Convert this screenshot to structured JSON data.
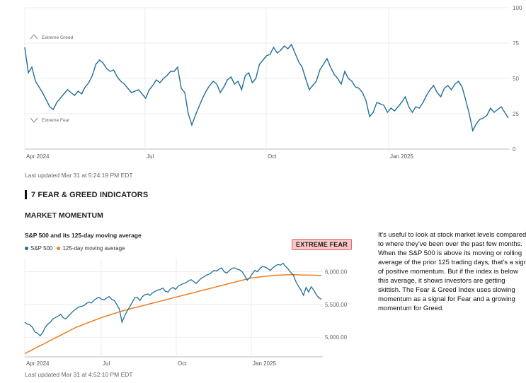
{
  "top_chart": {
    "updated": "Last updated Mar 31 at 5:24:19 PM EDT",
    "zone_greed": "Extreme Greed",
    "zone_fear": "Extreme Fear",
    "icons": [
      "chevron-up-icon",
      "chevron-down-icon"
    ],
    "line_color": "#1f6f97"
  },
  "indicators": {
    "title": "7 FEAR & GREED INDICATORS",
    "momentum_title": "MARKET MOMENTUM",
    "chart_title": "S&P 500 and its 125-day moving average",
    "badge": "EXTREME FEAR",
    "badge_color": "#f7c6c6",
    "updated": "Last updated Mar 31 at 4:52:10 PM EDT",
    "description": "It's useful to look at stock market levels compared to where they've been over the past few months. When the S&P 500 is above its moving or rolling average of the prior 125 trading days, that's a sign of positive momentum. But if the index is below this average, it shows investors are getting skittish. The Fear & Greed Index uses slowing momentum as a signal for Fear and a growing momentum for Greed."
  },
  "chart_data": [
    {
      "type": "line",
      "x_tick_labels": [
        "Apr 2024",
        "Jul",
        "Oct",
        "Jan 2025"
      ],
      "y_tick_labels": [
        "0",
        "25",
        "50",
        "75",
        "100"
      ],
      "ylim": [
        0,
        100
      ],
      "grid": true,
      "series": [
        {
          "color": "#1f6f97",
          "values": [
            72,
            54,
            58,
            48,
            44,
            40,
            35,
            30,
            28,
            33,
            36,
            39,
            42,
            40,
            38,
            41,
            39,
            44,
            47,
            52,
            60,
            63,
            61,
            57,
            55,
            56,
            51,
            48,
            46,
            43,
            40,
            41,
            42,
            39,
            36,
            42,
            45,
            49,
            47,
            50,
            52,
            55,
            55,
            58,
            43,
            40,
            25,
            17,
            24,
            30,
            36,
            41,
            45,
            48,
            46,
            40,
            44,
            49,
            51,
            46,
            48,
            42,
            52,
            54,
            47,
            50,
            60,
            63,
            66,
            67,
            72,
            68,
            70,
            73,
            71,
            74,
            68,
            62,
            58,
            50,
            42,
            45,
            48,
            56,
            60,
            64,
            58,
            53,
            50,
            46,
            55,
            50,
            48,
            44,
            43,
            40,
            34,
            23,
            26,
            33,
            32,
            31,
            26,
            29,
            27,
            30,
            33,
            37,
            30,
            26,
            30,
            29,
            33,
            38,
            42,
            45,
            40,
            37,
            43,
            45,
            42,
            46,
            48,
            44,
            35,
            25,
            13,
            18,
            21,
            22,
            24,
            29,
            26,
            28,
            30,
            26,
            22
          ]
        }
      ]
    },
    {
      "type": "line",
      "title": "S&P 500 and its 125-day moving average",
      "x_tick_labels": [
        "Apr 2024",
        "Jul",
        "Oct",
        "Jan 2025"
      ],
      "y_tick_labels": [
        "5,000.00",
        "5,500.00",
        "6,000.00"
      ],
      "ylim": [
        4700,
        6200
      ],
      "grid": true,
      "legend_position": "top-left",
      "series": [
        {
          "name": "S&P 500",
          "color": "#1f6f97",
          "values": [
            5230,
            5200,
            5190,
            5150,
            5080,
            5060,
            5020,
            5070,
            5150,
            5200,
            5230,
            5280,
            5300,
            5320,
            5350,
            5300,
            5280,
            5320,
            5360,
            5400,
            5430,
            5460,
            5470,
            5480,
            5510,
            5540,
            5520,
            5560,
            5590,
            5610,
            5580,
            5570,
            5600,
            5620,
            5580,
            5560,
            5500,
            5430,
            5230,
            5320,
            5400,
            5460,
            5530,
            5600,
            5610,
            5560,
            5620,
            5650,
            5660,
            5640,
            5680,
            5700,
            5720,
            5730,
            5750,
            5700,
            5690,
            5740,
            5760,
            5730,
            5780,
            5800,
            5820,
            5830,
            5860,
            5880,
            5850,
            5820,
            5860,
            5900,
            5920,
            5950,
            5960,
            5990,
            6020,
            6010,
            6040,
            6060,
            6000,
            5980,
            6020,
            6050,
            6060,
            6040,
            6030,
            6000,
            5940,
            5870,
            5910,
            5970,
            6020,
            6000,
            6050,
            6080,
            6070,
            6050,
            6020,
            6060,
            6090,
            6110,
            6100,
            6130,
            6080,
            6040,
            5990,
            5950,
            5850,
            5780,
            5720,
            5640,
            5760,
            5690,
            5770,
            5720,
            5650,
            5600,
            5580
          ]
        },
        {
          "name": "125-day moving average",
          "color": "#f07c1b",
          "values": [
            4750,
            4770,
            4790,
            4810,
            4830,
            4850,
            4870,
            4890,
            4910,
            4930,
            4950,
            4970,
            4990,
            5010,
            5030,
            5050,
            5070,
            5090,
            5110,
            5130,
            5150,
            5165,
            5180,
            5195,
            5210,
            5225,
            5240,
            5255,
            5270,
            5285,
            5300,
            5312,
            5325,
            5337,
            5350,
            5362,
            5375,
            5387,
            5400,
            5410,
            5420,
            5430,
            5440,
            5450,
            5460,
            5470,
            5480,
            5490,
            5500,
            5510,
            5520,
            5530,
            5540,
            5550,
            5560,
            5570,
            5580,
            5590,
            5600,
            5610,
            5620,
            5630,
            5640,
            5650,
            5660,
            5670,
            5680,
            5690,
            5700,
            5710,
            5720,
            5730,
            5740,
            5750,
            5760,
            5770,
            5780,
            5790,
            5800,
            5810,
            5820,
            5830,
            5840,
            5850,
            5860,
            5870,
            5880,
            5890,
            5900,
            5905,
            5910,
            5915,
            5920,
            5925,
            5930,
            5935,
            5940,
            5943,
            5946,
            5948,
            5950,
            5951,
            5952,
            5953,
            5954,
            5954,
            5953,
            5952,
            5951,
            5950,
            5949,
            5948,
            5947,
            5946,
            5945,
            5944,
            5943
          ]
        }
      ]
    }
  ]
}
